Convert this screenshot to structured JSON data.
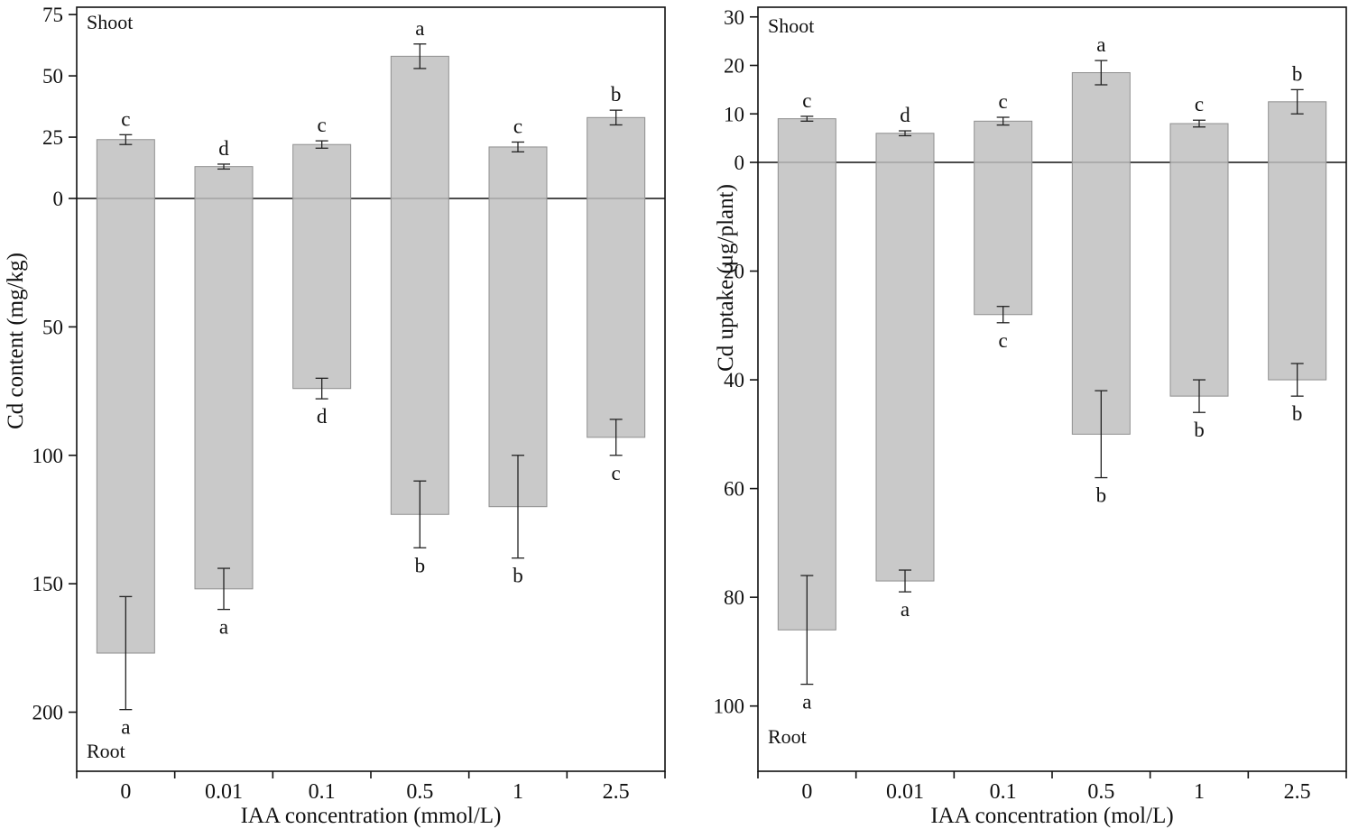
{
  "figure": {
    "background": "#ffffff",
    "bar_fill": "#c9c9c9",
    "bar_border": "#8f8f8f",
    "axis_color": "#111111",
    "error_bar_color": "#222222"
  },
  "chart_data": [
    {
      "type": "bar",
      "xlabel": "IAA concentration (mmol/L)",
      "ylabel": "Cd content (mg/kg)",
      "region_labels": {
        "top": "Shoot",
        "bottom": "Root"
      },
      "categories": [
        "0",
        "0.01",
        "0.1",
        "0.5",
        "1",
        "2.5"
      ],
      "axes": {
        "top": {
          "min": 0,
          "max": 78,
          "ticks": [
            0,
            25,
            50,
            75
          ]
        },
        "bottom": {
          "min": 0,
          "max": 223,
          "ticks": [
            50,
            100,
            150,
            200
          ]
        }
      },
      "series": [
        {
          "name": "Shoot",
          "direction": "up",
          "values": [
            24,
            13,
            22,
            58,
            21,
            33
          ],
          "errors": [
            2,
            1,
            1.5,
            5,
            2,
            3
          ],
          "letters": [
            "c",
            "d",
            "c",
            "a",
            "c",
            "b"
          ]
        },
        {
          "name": "Root",
          "direction": "down",
          "values": [
            177,
            152,
            74,
            123,
            120,
            93
          ],
          "errors": [
            22,
            8,
            4,
            13,
            20,
            7
          ],
          "letters": [
            "a",
            "a",
            "d",
            "b",
            "b",
            "c"
          ]
        }
      ],
      "legend": "none",
      "grid": false
    },
    {
      "type": "bar",
      "xlabel": "IAA concentration (mol/L)",
      "ylabel": "Cd uptake (μg/plant)",
      "region_labels": {
        "top": "Shoot",
        "bottom": "Root"
      },
      "categories": [
        "0",
        "0.01",
        "0.1",
        "0.5",
        "1",
        "2.5"
      ],
      "axes": {
        "top": {
          "min": 0,
          "max": 32,
          "ticks": [
            0,
            10,
            20,
            30
          ]
        },
        "bottom": {
          "min": 0,
          "max": 112,
          "ticks": [
            20,
            40,
            60,
            80,
            100
          ]
        }
      },
      "series": [
        {
          "name": "Shoot",
          "direction": "up",
          "values": [
            9,
            6,
            8.5,
            18.5,
            8,
            12.5
          ],
          "errors": [
            0.5,
            0.5,
            0.8,
            2.5,
            0.7,
            2.5
          ],
          "letters": [
            "c",
            "d",
            "c",
            "a",
            "c",
            "b"
          ]
        },
        {
          "name": "Root",
          "direction": "down",
          "values": [
            86,
            77,
            28,
            50,
            43,
            40
          ],
          "errors": [
            10,
            2,
            1.5,
            8,
            3,
            3
          ],
          "letters": [
            "a",
            "a",
            "c",
            "b",
            "b",
            "b"
          ]
        }
      ],
      "legend": "none",
      "grid": false
    }
  ]
}
